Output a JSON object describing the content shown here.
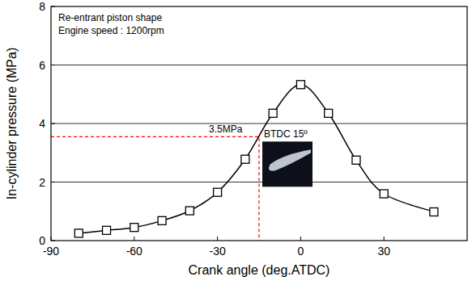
{
  "chart_data": {
    "type": "line",
    "annotations": [
      "Re-entrant piston shape",
      "Engine speed : 1200rpm"
    ],
    "x_label": "Crank angle (deg.ATDC)",
    "y_label": "In-cylinder pressure (MPa)",
    "x": [
      -80,
      -70,
      -60,
      -50,
      -40,
      -30,
      -20,
      -10,
      0,
      10,
      20,
      30,
      48
    ],
    "series": [
      {
        "name": "In-cylinder pressure",
        "color": "#000000",
        "marker": "square",
        "values": [
          0.25,
          0.35,
          0.45,
          0.68,
          1.02,
          1.65,
          2.78,
          4.35,
          5.33,
          4.35,
          2.75,
          1.6,
          0.98
        ]
      }
    ],
    "reference": {
      "x": -15,
      "y": 3.55,
      "y_label": "3.5MPa",
      "x_label": "BTDC 15º",
      "color": "#ff0000",
      "line_style": "dashed"
    },
    "xlim": [
      -90,
      60
    ],
    "xticks": [
      -90,
      -60,
      -30,
      0,
      30
    ],
    "ylim": [
      0,
      8
    ],
    "yticks": [
      0,
      2,
      4,
      6,
      8
    ],
    "grid": true
  }
}
